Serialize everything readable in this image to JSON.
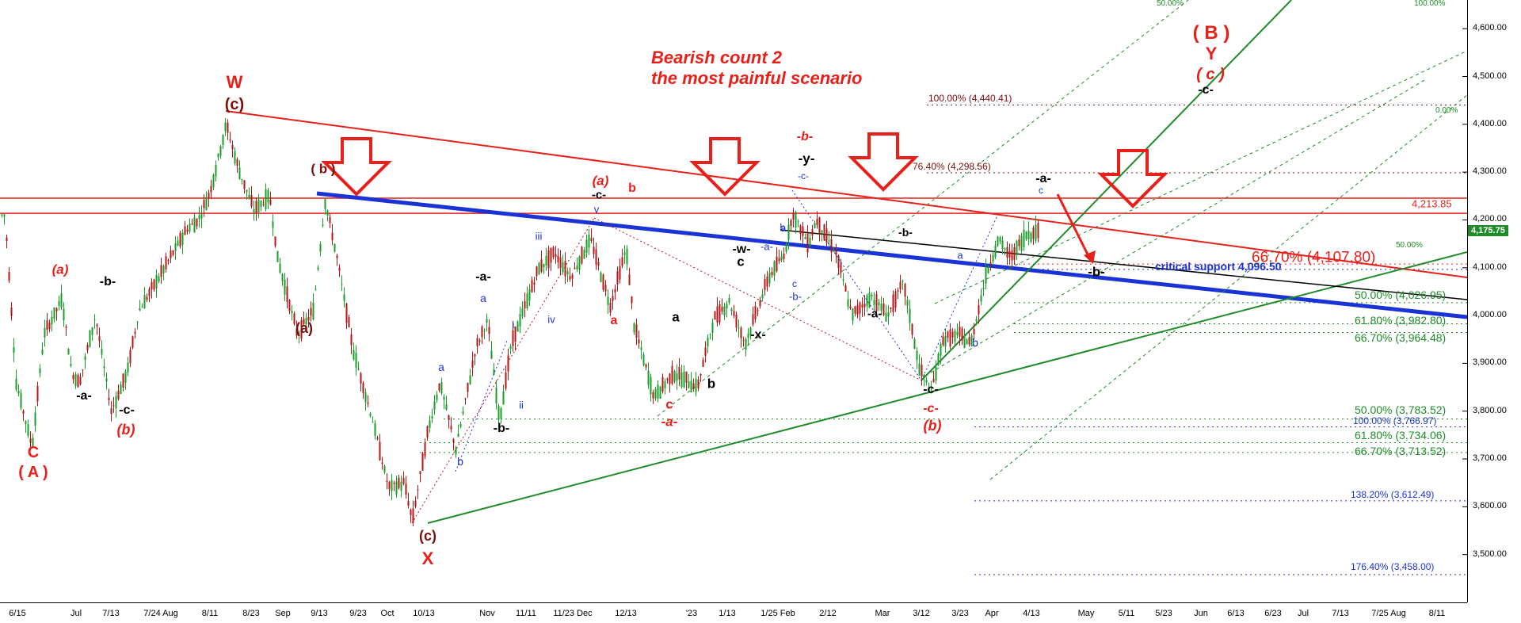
{
  "title": {
    "line1": "Bearish count 2",
    "line2": "the most painful scenario"
  },
  "colors": {
    "up": "#1a9e2a",
    "down": "#b01818",
    "red": "#e8201a",
    "maroon": "#7a1010",
    "blue": "#1a33d6",
    "green": "#1e8c28",
    "black": "#000000"
  },
  "chart_data": {
    "type": "candlestick",
    "y_axis": {
      "min": 3400,
      "max": 4660,
      "ticks": [
        3500,
        3600,
        3700,
        3800,
        3900,
        4000,
        4100,
        4200,
        4300,
        4400,
        4500,
        4600
      ],
      "tick_labels": [
        "3,500.00",
        "3,600.00",
        "3,700.00",
        "3,800.00",
        "3,900.00",
        "4,000.00",
        "4,100.00",
        "4,200.00",
        "4,300.00",
        "4,400.00",
        "4,500.00",
        "4,600.00"
      ]
    },
    "x_axis": {
      "labels": [
        "6/15",
        "Jul",
        "7/13",
        "7/24 Aug",
        "8/11",
        "8/23",
        "Sep",
        "9/13",
        "9/23",
        "Oct",
        "10/13",
        "Nov",
        "11/11",
        "11/23 Dec",
        "12/13",
        "'23",
        "1/13",
        "1/25 Feb",
        "2/12",
        "Mar",
        "3/12",
        "3/23",
        "Apr",
        "4/13",
        "May",
        "5/11",
        "5/23",
        "Jun",
        "6/13",
        "6/23",
        "Jul",
        "7/13",
        "7/25 Aug",
        "8/11"
      ],
      "label_x": [
        22,
        96,
        140,
        203,
        265,
        317,
        357,
        403,
        452,
        489,
        535,
        615,
        664,
        723,
        790,
        873,
        918,
        982,
        1045,
        1114,
        1163,
        1212,
        1252,
        1302,
        1371,
        1422,
        1469,
        1516,
        1560,
        1607,
        1645,
        1692,
        1753,
        1814
      ]
    },
    "last_price": "4,175.75",
    "swing_points": [
      [
        6,
        4210
      ],
      [
        20,
        3860
      ],
      [
        40,
        3725
      ],
      [
        55,
        3960
      ],
      [
        78,
        4035
      ],
      [
        90,
        3880
      ],
      [
        100,
        3860
      ],
      [
        120,
        4000
      ],
      [
        140,
        3800
      ],
      [
        160,
        3880
      ],
      [
        175,
        4010
      ],
      [
        200,
        4080
      ],
      [
        235,
        4180
      ],
      [
        250,
        4200
      ],
      [
        265,
        4260
      ],
      [
        285,
        4400
      ],
      [
        300,
        4310
      ],
      [
        320,
        4220
      ],
      [
        340,
        4250
      ],
      [
        350,
        4120
      ],
      [
        375,
        3960
      ],
      [
        395,
        4010
      ],
      [
        410,
        4240
      ],
      [
        425,
        4120
      ],
      [
        445,
        3930
      ],
      [
        470,
        3780
      ],
      [
        490,
        3640
      ],
      [
        510,
        3650
      ],
      [
        520,
        3570
      ],
      [
        540,
        3760
      ],
      [
        555,
        3860
      ],
      [
        575,
        3720
      ],
      [
        600,
        3930
      ],
      [
        615,
        3990
      ],
      [
        630,
        3780
      ],
      [
        645,
        3940
      ],
      [
        680,
        4100
      ],
      [
        700,
        4130
      ],
      [
        720,
        4080
      ],
      [
        745,
        4160
      ],
      [
        770,
        4020
      ],
      [
        790,
        4140
      ],
      [
        800,
        3980
      ],
      [
        825,
        3830
      ],
      [
        850,
        3880
      ],
      [
        880,
        3850
      ],
      [
        900,
        3990
      ],
      [
        920,
        4030
      ],
      [
        940,
        3940
      ],
      [
        970,
        4080
      ],
      [
        990,
        4130
      ],
      [
        1000,
        4215
      ],
      [
        1020,
        4150
      ],
      [
        1030,
        4200
      ],
      [
        1055,
        4130
      ],
      [
        1075,
        4000
      ],
      [
        1100,
        4040
      ],
      [
        1120,
        4000
      ],
      [
        1140,
        4070
      ],
      [
        1160,
        3890
      ],
      [
        1175,
        3840
      ],
      [
        1190,
        3950
      ],
      [
        1210,
        3960
      ],
      [
        1225,
        3940
      ],
      [
        1245,
        4090
      ],
      [
        1260,
        4160
      ],
      [
        1275,
        4120
      ],
      [
        1295,
        4170
      ],
      [
        1310,
        4176
      ]
    ],
    "levels": [
      {
        "label": "100.00% (4,440.41)",
        "value": 4440.41,
        "color": "#7a1010"
      },
      {
        "label": "76.40% (4,298.56)",
        "value": 4298.56,
        "color": "#7a1010"
      },
      {
        "label": "4,213.85",
        "value": 4213.85,
        "color": "#e8201a"
      },
      {
        "label": "66.70% (4,107.80)",
        "value": 4107.8,
        "color": "#e8201a"
      },
      {
        "label": "critical support 4,096.50",
        "value": 4096.5,
        "color": "#1a33d6"
      },
      {
        "label": "50.00% (4,026.95)",
        "value": 4026.95,
        "color": "#1e8c28"
      },
      {
        "label": "61.80% (3,982.80)",
        "value": 3982.8,
        "color": "#1e8c28"
      },
      {
        "label": "66.70% (3,964.48)",
        "value": 3964.48,
        "color": "#1e8c28"
      },
      {
        "label": "50.00% (3,783.52)",
        "value": 3783.52,
        "color": "#1e8c28"
      },
      {
        "label": "100.00% (3,766.97)",
        "value": 3766.97,
        "color": "#1a33d6"
      },
      {
        "label": "61.80% (3,734.06)",
        "value": 3734.06,
        "color": "#1e8c28"
      },
      {
        "label": "66.70% (3,713.52)",
        "value": 3713.52,
        "color": "#1e8c28"
      },
      {
        "label": "138.20% (3,612.49)",
        "value": 3612.49,
        "color": "#1a33d6"
      },
      {
        "label": "176.40% (3,458.00)",
        "value": 3458.0,
        "color": "#1a33d6"
      }
    ],
    "small_labels": [
      "50.00%",
      "100.00%",
      "50.00%",
      "0.00%"
    ],
    "wave_labels": [
      {
        "t": "C",
        "c": "red"
      },
      {
        "t": "( A )",
        "c": "red"
      },
      {
        "t": "(a)",
        "c": "red"
      },
      {
        "t": "-a-",
        "c": "black"
      },
      {
        "t": "-b-",
        "c": "black"
      },
      {
        "t": "-c-",
        "c": "black"
      },
      {
        "t": "(b)",
        "c": "red"
      },
      {
        "t": "W",
        "c": "red"
      },
      {
        "t": "(c)",
        "c": "maroon"
      },
      {
        "t": "( b )",
        "c": "maroon"
      },
      {
        "t": "(a)",
        "c": "maroon"
      },
      {
        "t": "(c)",
        "c": "maroon"
      },
      {
        "t": "X",
        "c": "red"
      },
      {
        "t": "a",
        "c": "blue"
      },
      {
        "t": "b",
        "c": "blue"
      },
      {
        "t": "-a-",
        "c": "black"
      },
      {
        "t": "-b-",
        "c": "black"
      },
      {
        "t": "a",
        "c": "blue"
      },
      {
        "t": "i",
        "c": "blue"
      },
      {
        "t": "ii",
        "c": "blue"
      },
      {
        "t": "iii",
        "c": "blue"
      },
      {
        "t": "iv",
        "c": "blue"
      },
      {
        "t": "v",
        "c": "blue"
      },
      {
        "t": "(a)",
        "c": "red"
      },
      {
        "t": "-c-",
        "c": "black"
      },
      {
        "t": "b",
        "c": "red"
      },
      {
        "t": "a",
        "c": "red"
      },
      {
        "t": "a",
        "c": "black"
      },
      {
        "t": "b",
        "c": "black"
      },
      {
        "t": "c",
        "c": "red"
      },
      {
        "t": "-a-",
        "c": "red"
      },
      {
        "t": "-w-",
        "c": "black"
      },
      {
        "t": "c",
        "c": "black"
      },
      {
        "t": "-x-",
        "c": "black"
      },
      {
        "t": "a",
        "c": "blue"
      },
      {
        "t": "-a-",
        "c": "blue"
      },
      {
        "t": "b",
        "c": "blue"
      },
      {
        "t": "c",
        "c": "blue"
      },
      {
        "t": "-b-",
        "c": "blue"
      },
      {
        "t": "-c-",
        "c": "blue"
      },
      {
        "t": "-b-",
        "c": "red"
      },
      {
        "t": "-y-",
        "c": "black"
      },
      {
        "t": "-a-",
        "c": "black"
      },
      {
        "t": "-b-",
        "c": "black"
      },
      {
        "t": "-c-",
        "c": "black"
      },
      {
        "t": "-c-",
        "c": "red"
      },
      {
        "t": "(b)",
        "c": "red"
      },
      {
        "t": "a",
        "c": "blue"
      },
      {
        "t": "b",
        "c": "blue"
      },
      {
        "t": "c",
        "c": "blue"
      },
      {
        "t": "-a-",
        "c": "black"
      },
      {
        "t": "-b-",
        "c": "black"
      },
      {
        "t": "( B )",
        "c": "red"
      },
      {
        "t": "Y",
        "c": "red"
      },
      {
        "t": "( c )",
        "c": "red"
      },
      {
        "t": "-c-",
        "c": "black"
      }
    ]
  }
}
